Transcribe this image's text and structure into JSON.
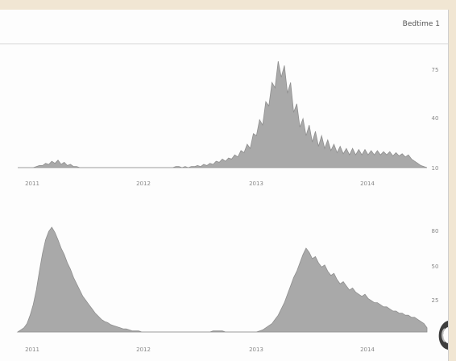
{
  "panel": {
    "title": "Bedtime 1"
  },
  "chart_data": [
    {
      "type": "area",
      "title": "",
      "x": [
        0,
        4,
        8,
        12,
        16,
        20,
        24,
        28,
        32,
        36,
        40,
        44,
        48,
        52,
        56,
        60,
        64,
        68,
        72,
        76,
        80,
        84,
        88,
        92,
        96,
        100,
        104,
        108,
        112,
        116,
        120,
        124,
        128,
        132,
        136,
        140,
        144,
        148,
        152,
        156,
        160,
        164,
        168,
        172,
        176,
        180,
        184,
        188,
        192,
        196,
        200,
        204,
        208,
        212,
        216,
        220,
        224,
        228,
        232,
        236,
        240,
        244,
        248,
        252,
        256,
        260,
        264,
        268,
        272,
        276,
        280,
        284,
        288,
        292,
        296,
        300,
        304,
        308,
        312,
        316,
        320,
        324,
        328,
        332,
        336,
        340,
        344,
        348,
        352,
        356,
        360,
        364,
        368,
        372,
        376,
        380,
        384,
        388,
        392,
        396,
        400,
        404,
        408,
        412,
        416,
        420,
        424,
        428,
        432,
        436,
        440,
        444,
        448,
        452,
        456,
        460,
        464,
        468,
        472,
        476,
        480,
        484,
        488,
        492,
        496,
        500,
        504,
        508,
        512,
        516,
        520,
        524,
        528
      ],
      "values": [
        0,
        0,
        0,
        0,
        0,
        0,
        1,
        2,
        2,
        4,
        3,
        6,
        4,
        7,
        3,
        5,
        2,
        3,
        1,
        1,
        0,
        0,
        0,
        0,
        0,
        0,
        0,
        0,
        0,
        0,
        0,
        0,
        0,
        0,
        0,
        0,
        0,
        0,
        0,
        0,
        0,
        0,
        0,
        0,
        0,
        0,
        0,
        0,
        0,
        0,
        0,
        1,
        1,
        0,
        1,
        0,
        1,
        1,
        2,
        1,
        3,
        2,
        4,
        3,
        6,
        5,
        8,
        6,
        9,
        8,
        12,
        10,
        16,
        14,
        22,
        18,
        32,
        30,
        45,
        40,
        62,
        58,
        80,
        75,
        100,
        85,
        96,
        70,
        80,
        52,
        60,
        38,
        46,
        30,
        40,
        24,
        34,
        20,
        30,
        18,
        26,
        16,
        22,
        14,
        20,
        13,
        18,
        12,
        18,
        12,
        17,
        12,
        17,
        12,
        16,
        12,
        16,
        12,
        15,
        12,
        15,
        11,
        14,
        11,
        13,
        10,
        12,
        8,
        6,
        4,
        2,
        1,
        0
      ],
      "xtick_labels": [
        "2011",
        "2012",
        "2013",
        "2014"
      ],
      "ytick_labels": [
        "75",
        "40",
        "10"
      ]
    },
    {
      "type": "area",
      "title": "",
      "x": [
        0,
        4,
        8,
        12,
        16,
        20,
        24,
        28,
        32,
        36,
        40,
        44,
        48,
        52,
        56,
        60,
        64,
        68,
        72,
        76,
        80,
        84,
        88,
        92,
        96,
        100,
        104,
        108,
        112,
        116,
        120,
        124,
        128,
        132,
        136,
        140,
        144,
        148,
        152,
        156,
        160,
        164,
        168,
        172,
        176,
        180,
        184,
        188,
        192,
        196,
        200,
        204,
        208,
        212,
        216,
        220,
        224,
        228,
        232,
        236,
        240,
        244,
        248,
        252,
        256,
        260,
        264,
        268,
        272,
        276,
        280,
        284,
        288,
        292,
        296,
        300,
        304,
        308,
        312,
        316,
        320,
        324,
        328,
        332,
        336,
        340,
        344,
        348,
        352,
        356,
        360,
        364,
        368,
        372,
        376,
        380,
        384,
        388,
        392,
        396,
        400,
        404,
        408,
        412,
        416,
        420,
        424,
        428,
        432,
        436,
        440,
        444,
        448,
        452,
        456,
        460,
        464,
        468,
        472,
        476,
        480,
        484,
        488,
        492,
        496,
        500,
        504,
        508,
        512,
        516,
        520,
        524,
        528
      ],
      "values": [
        0,
        2,
        4,
        8,
        16,
        26,
        40,
        58,
        75,
        88,
        96,
        100,
        95,
        88,
        80,
        74,
        66,
        60,
        52,
        46,
        40,
        34,
        30,
        26,
        22,
        18,
        15,
        12,
        10,
        9,
        7,
        6,
        5,
        4,
        3,
        3,
        2,
        1,
        1,
        1,
        0,
        0,
        0,
        0,
        0,
        0,
        0,
        0,
        0,
        0,
        0,
        0,
        0,
        0,
        0,
        0,
        0,
        0,
        0,
        0,
        0,
        0,
        0,
        1,
        1,
        1,
        1,
        0,
        0,
        0,
        0,
        0,
        0,
        0,
        0,
        0,
        0,
        0,
        1,
        2,
        4,
        6,
        8,
        12,
        16,
        22,
        28,
        36,
        44,
        52,
        58,
        66,
        74,
        80,
        76,
        70,
        72,
        66,
        62,
        64,
        58,
        54,
        56,
        50,
        46,
        48,
        44,
        40,
        42,
        38,
        36,
        34,
        36,
        32,
        30,
        28,
        28,
        26,
        24,
        24,
        22,
        20,
        20,
        18,
        18,
        16,
        16,
        14,
        14,
        12,
        10,
        8,
        4
      ],
      "xtick_labels": [
        "2011",
        "2012",
        "2013",
        "2014"
      ],
      "ytick_labels": [
        "80",
        "50",
        "25"
      ]
    }
  ]
}
